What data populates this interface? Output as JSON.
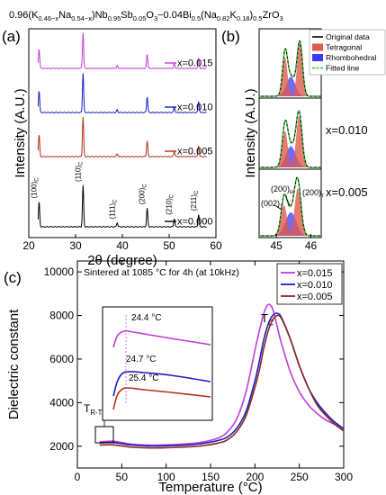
{
  "figure": {
    "title_parts": [
      "0.96(K",
      "0.46−x",
      "Na",
      "0.54−x",
      ")Nb",
      "0.95",
      "Sb",
      "0.05",
      "O",
      "3",
      "−0.04Bi",
      "0.5",
      "(Na",
      "0.82",
      "K",
      "0.18",
      ")",
      "0.5",
      "ZrO",
      "3"
    ]
  },
  "chart_data": [
    {
      "id": "a",
      "panel_label": "(a)",
      "type": "line",
      "xlabel": "2θ (degree)",
      "ylabel": "Intensity (A.U.)",
      "xlim": [
        20,
        60
      ],
      "xticks": [
        20,
        30,
        40,
        50,
        60
      ],
      "peaks": [
        {
          "pos": 22.2,
          "label": "(100)",
          "sub": "C",
          "h_main": 0.55,
          "h_ref": 0.6
        },
        {
          "pos": 31.6,
          "label": "(110)",
          "sub": "C",
          "h_main": 1.0,
          "h_ref": 1.0
        },
        {
          "pos": 38.9,
          "label": "(111)",
          "sub": "C",
          "h_main": 0.07,
          "h_ref": 0.1
        },
        {
          "pos": 45.3,
          "label": "(200)",
          "sub": "C",
          "h_main": 0.4,
          "h_ref": 0.45
        },
        {
          "pos": 51.1,
          "label": "(210)",
          "sub": "C",
          "h_main": 0.14,
          "h_ref": 0.2
        },
        {
          "pos": 56.3,
          "label": "(211)",
          "sub": "C",
          "h_main": 0.28,
          "h_ref": 0.3
        }
      ],
      "series": [
        {
          "name": "x=0.015",
          "color": "#c03cdb"
        },
        {
          "name": "x=0.010",
          "color": "#1c1cc0"
        },
        {
          "name": "x=0.005",
          "color": "#b0301c"
        },
        {
          "name": "x=0.000",
          "color": "#000000"
        }
      ]
    },
    {
      "id": "b",
      "panel_label": "(b)",
      "type": "line",
      "ylabel": "Intensity (A.U.)",
      "xlim": [
        44.5,
        46.3
      ],
      "xticks": [
        45,
        46
      ],
      "legend": [
        {
          "name": "Original data",
          "color": "#000000",
          "kind": "line"
        },
        {
          "name": "Tetragonal",
          "color": "#e05a4e",
          "kind": "fill"
        },
        {
          "name": "Rhombohedral",
          "color": "#3a3aff",
          "kind": "fill"
        },
        {
          "name": "Fitted line",
          "color": "#2ecc2e",
          "kind": "dash"
        }
      ],
      "annotations": [
        "(200)",
        "R",
        "(002)",
        "T",
        "(200)",
        "T"
      ],
      "series": [
        {
          "name": "x=0.015",
          "tetra": [
            {
              "c": 45.25,
              "h": 0.7,
              "w": 0.1
            },
            {
              "c": 45.68,
              "h": 0.95,
              "w": 0.11
            }
          ],
          "rhombo": [
            {
              "c": 45.42,
              "h": 0.35,
              "w": 0.18
            }
          ]
        },
        {
          "name": "x=0.010",
          "tetra": [
            {
              "c": 45.25,
              "h": 0.65,
              "w": 0.11
            },
            {
              "c": 45.66,
              "h": 0.92,
              "w": 0.12
            }
          ],
          "rhombo": [
            {
              "c": 45.42,
              "h": 0.38,
              "w": 0.2
            }
          ]
        },
        {
          "name": "x=0.005",
          "tetra": [
            {
              "c": 45.22,
              "h": 0.55,
              "w": 0.12
            },
            {
              "c": 45.62,
              "h": 0.85,
              "w": 0.13
            }
          ],
          "rhombo": [
            {
              "c": 45.42,
              "h": 0.42,
              "w": 0.22
            }
          ]
        }
      ]
    },
    {
      "id": "c",
      "panel_label": "(c)",
      "type": "line",
      "xlabel": "Temperature (°C)",
      "ylabel": "Dielectric constant",
      "annotation": "Sintered at 1085 °C for 4h (at 10kHz)",
      "xlim": [
        0,
        300
      ],
      "ylim": [
        1000,
        10500
      ],
      "xticks": [
        0,
        50,
        100,
        150,
        200,
        250,
        300
      ],
      "yticks": [
        2000,
        4000,
        6000,
        8000,
        10000
      ],
      "tc_label": [
        "T",
        "C"
      ],
      "trt_label": [
        "T",
        "R-T"
      ],
      "series": [
        {
          "name": "x=0.015",
          "color": "#c03cdb",
          "x": [
            25,
            40,
            60,
            80,
            100,
            120,
            140,
            160,
            170,
            180,
            190,
            200,
            205,
            210,
            215,
            220,
            225,
            230,
            240,
            250,
            260,
            270,
            280,
            290,
            300
          ],
          "y": [
            2200,
            2230,
            2100,
            2050,
            2060,
            2100,
            2180,
            2400,
            2700,
            3300,
            4500,
            6400,
            7300,
            8100,
            8500,
            8300,
            7500,
            6700,
            5400,
            4500,
            3900,
            3500,
            3200,
            3000,
            2800
          ]
        },
        {
          "name": "x=0.010",
          "color": "#1c1cc0",
          "x": [
            25,
            40,
            60,
            80,
            100,
            120,
            140,
            160,
            170,
            180,
            190,
            200,
            205,
            210,
            215,
            220,
            225,
            230,
            240,
            250,
            260,
            270,
            280,
            290,
            300
          ],
          "y": [
            2150,
            2170,
            2060,
            2010,
            2020,
            2050,
            2120,
            2280,
            2450,
            2850,
            3600,
            5000,
            5900,
            6900,
            7600,
            8000,
            8100,
            7900,
            6900,
            5700,
            4700,
            4000,
            3500,
            3100,
            2800
          ]
        },
        {
          "name": "x=0.005",
          "color": "#8b2a1c",
          "x": [
            25,
            40,
            60,
            80,
            100,
            120,
            140,
            160,
            170,
            180,
            190,
            200,
            205,
            210,
            215,
            220,
            225,
            230,
            240,
            250,
            260,
            270,
            280,
            290,
            300
          ],
          "y": [
            2050,
            2060,
            1960,
            1920,
            1930,
            1960,
            2020,
            2160,
            2320,
            2700,
            3400,
            4700,
            5500,
            6500,
            7300,
            7800,
            8000,
            7850,
            6900,
            5700,
            4700,
            3900,
            3400,
            3000,
            2700
          ]
        }
      ],
      "inset": {
        "labels": [
          {
            "text": "24.4 °C",
            "color": "#c03cdb"
          },
          {
            "text": "24.7 °C",
            "color": "#1c1cc0"
          },
          {
            "text": "25.4 °C",
            "color": "#b0301c"
          }
        ]
      }
    }
  ]
}
